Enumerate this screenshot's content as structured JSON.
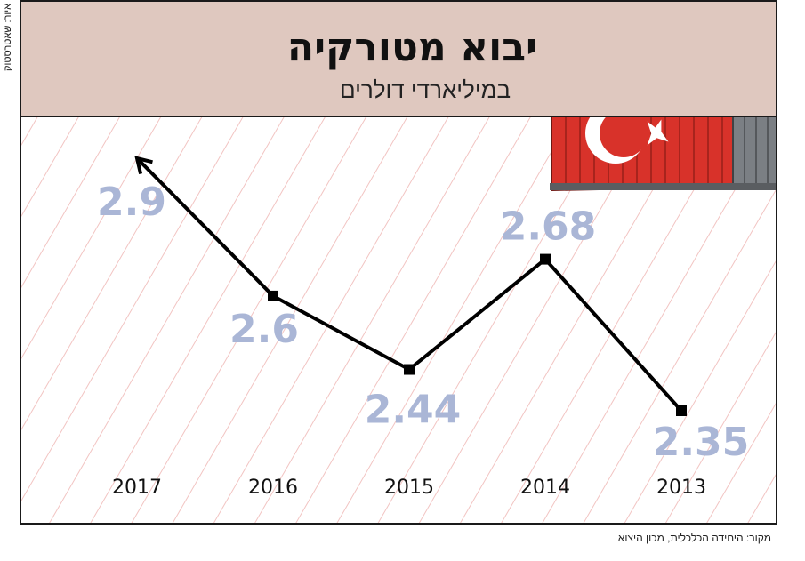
{
  "credit": "איור: שאטרסטוק",
  "source": "מקור: היחידה הכלכלית, מכון היצוא",
  "colors": {
    "header_bg": "#dfc8bf",
    "stripes": "#f2c4c2",
    "line": "#000000",
    "value_labels": "#aab6d6",
    "container_red": "#d8322a",
    "container_grey": "#7b7f84"
  },
  "illustration": {
    "icon": "shipping-container-turkish-flag-icon"
  },
  "chart_data": {
    "type": "line",
    "title": "יבוא מטורקיה",
    "subtitle": "במיליארדי דולרים",
    "x": [
      "2017",
      "2016",
      "2015",
      "2014",
      "2013"
    ],
    "values": [
      2.9,
      2.6,
      2.44,
      2.68,
      2.35
    ],
    "value_labels": [
      "2.9",
      "2.6",
      "2.44",
      "2.68",
      "2.35"
    ],
    "x_direction": "right-to-left",
    "ylim": [
      2.0,
      3.0
    ],
    "grid": false,
    "legend": "none",
    "end_marker": "arrow"
  }
}
